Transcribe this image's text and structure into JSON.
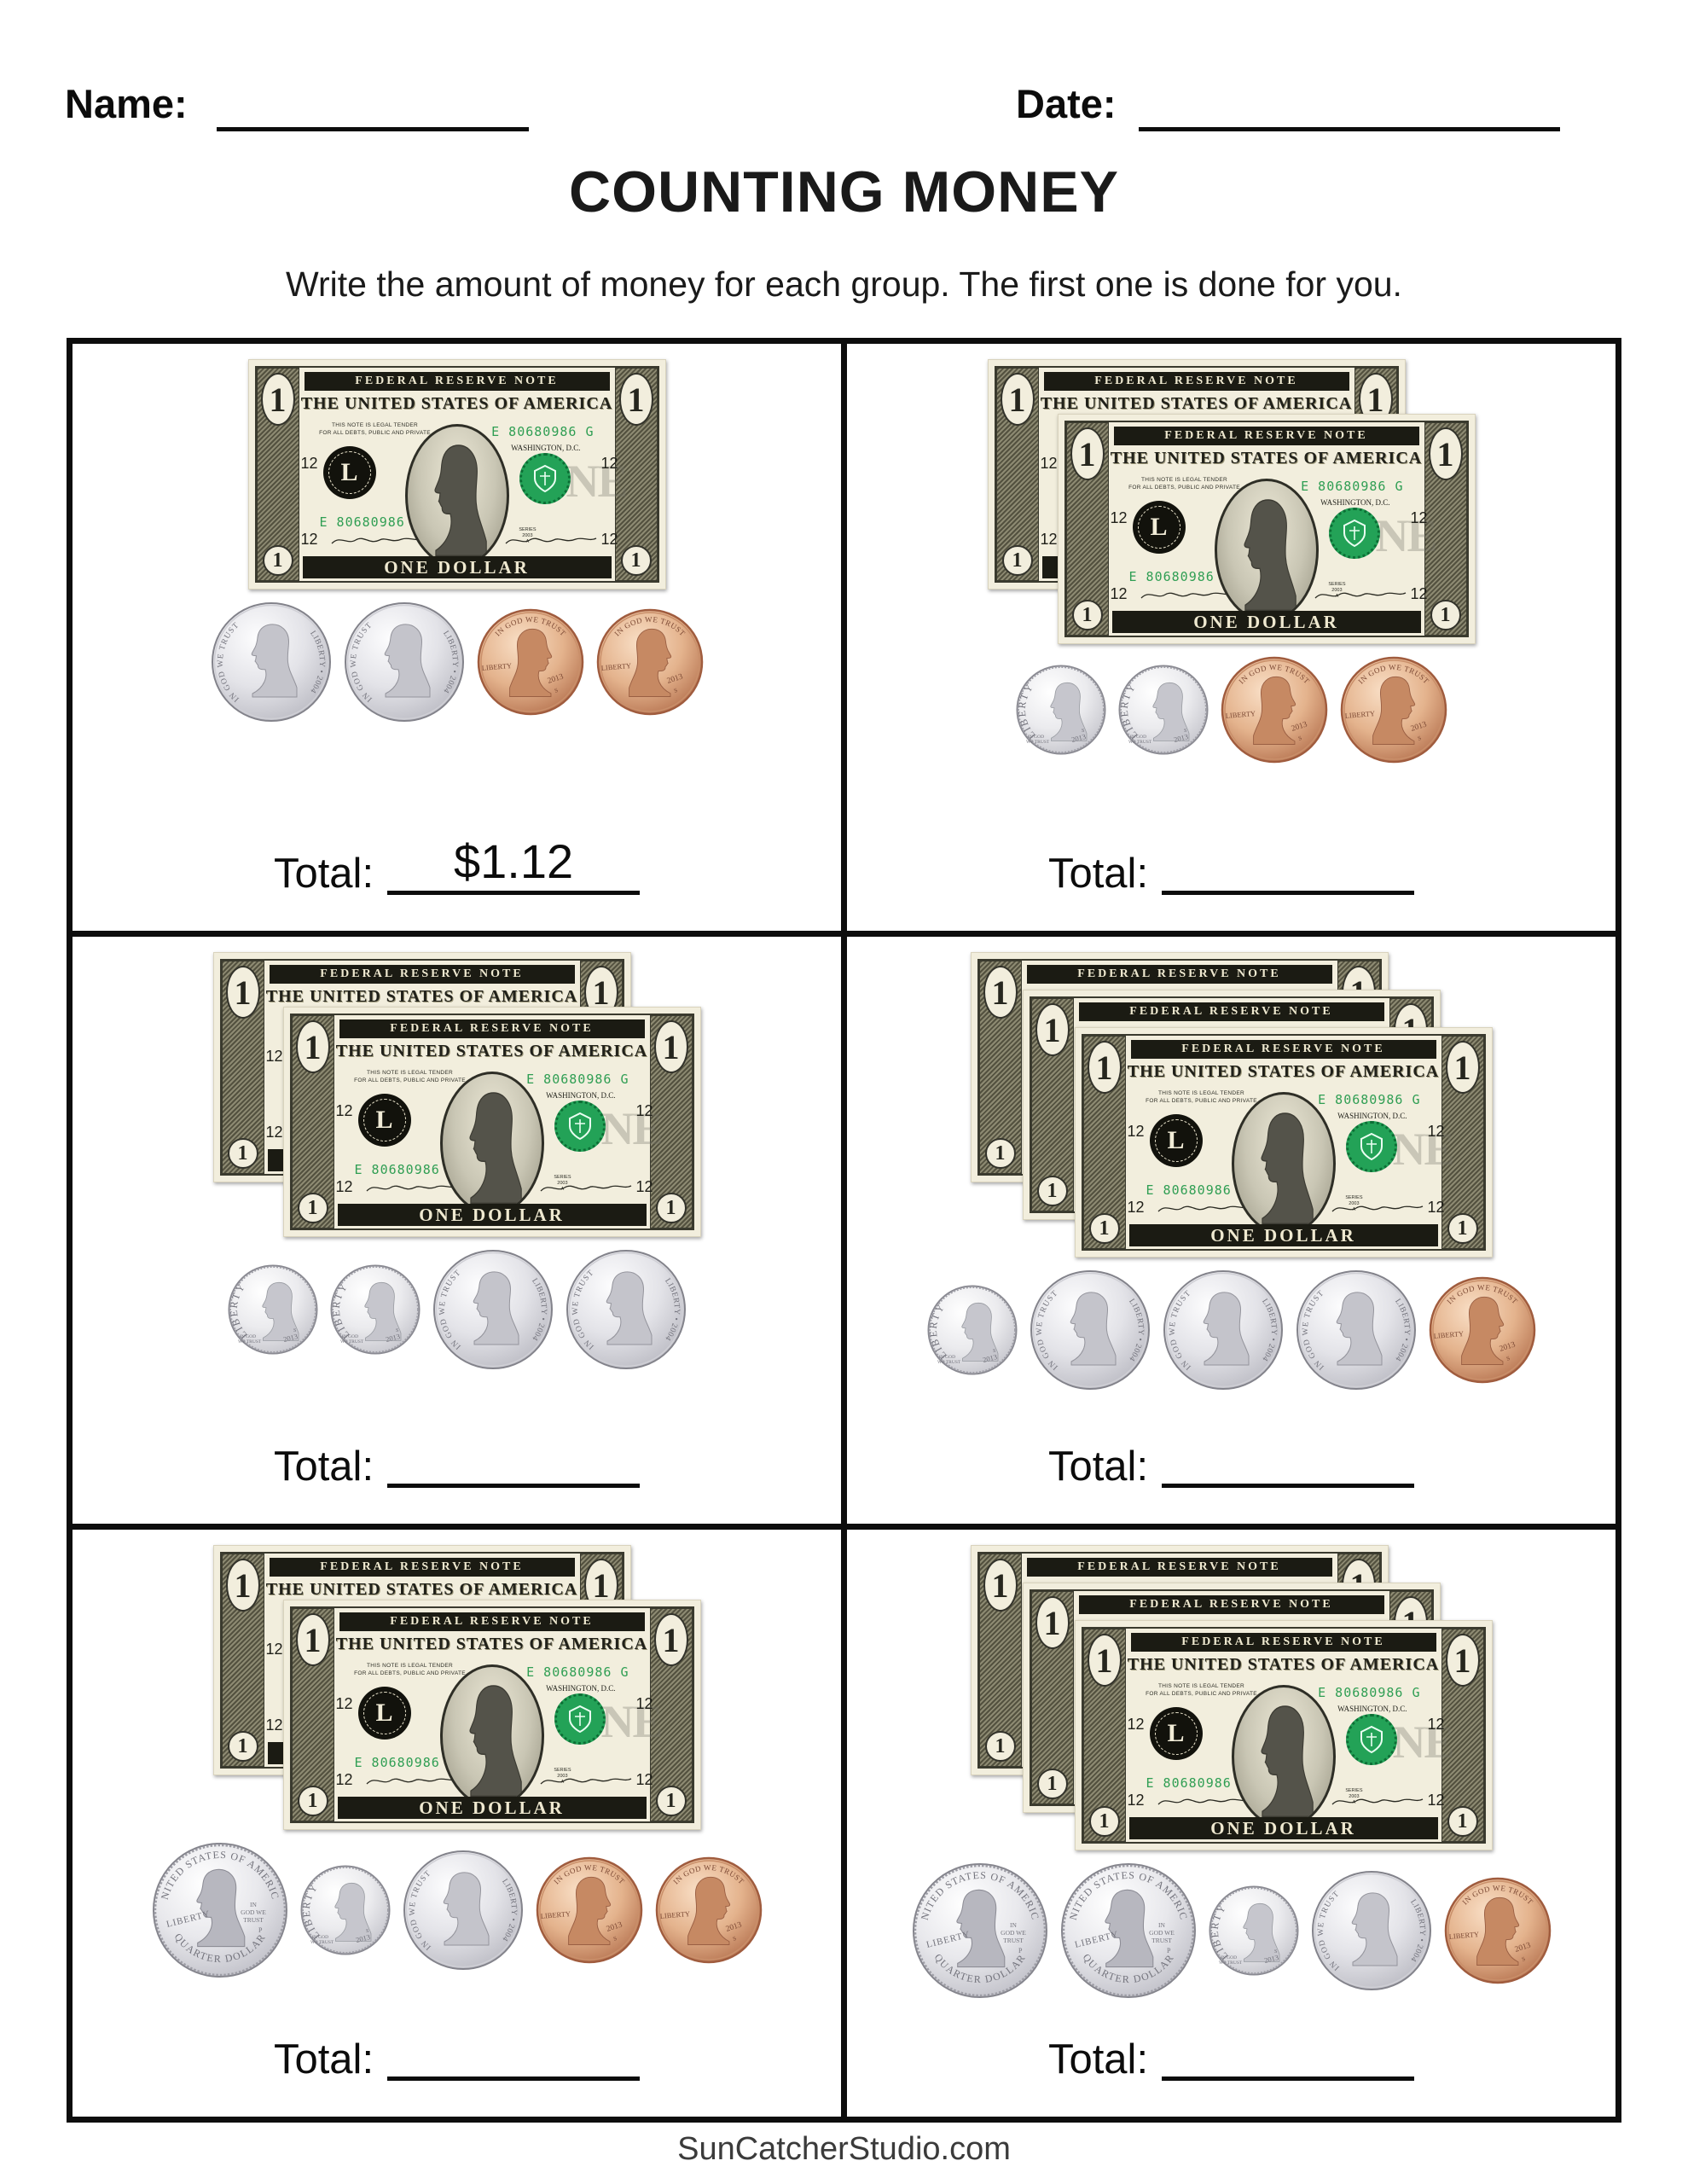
{
  "header": {
    "name_label": "Name:",
    "date_label": "Date:",
    "title": "COUNTING MONEY",
    "instruction": "Write the amount of money for each group. The first one is done for you."
  },
  "bill": {
    "banner": "FEDERAL RESERVE NOTE",
    "country": "THE UNITED STATES OF AMERICA",
    "legal_line1": "THIS NOTE IS LEGAL TENDER",
    "legal_line2": "FOR ALL DEBTS, PUBLIC AND PRIVATE",
    "serial": "E 80680986 G",
    "city": "WASHINGTON, D.C.",
    "ghost": "ONE",
    "denomination": "ONE DOLLAR",
    "value": "1",
    "district_letter": "L",
    "plate_number": "12",
    "series_line1": "SERIES",
    "series_line2": "2003",
    "series_line3": "A"
  },
  "coins": {
    "quarter": {
      "top_text": "UNITED STATES OF AMERICA",
      "bottom_text": "QUARTER DOLLAR",
      "liberty": "LIBERTY",
      "motto_line1": "IN",
      "motto_line2": "GOD WE",
      "motto_line3": "TRUST",
      "mint": "P"
    },
    "dime": {
      "liberty": "LIBERTY",
      "motto_line1": "IN GOD",
      "motto_line2": "WE TRUST",
      "year": "2013",
      "mint": "S"
    },
    "nickel": {
      "motto": "IN GOD WE TRUST",
      "liberty_year": "LIBERTY • 2004"
    },
    "penny": {
      "motto": "IN GOD WE TRUST",
      "liberty": "LIBERTY",
      "year": "2013",
      "mint": "S"
    }
  },
  "cells": [
    {
      "bills": 1,
      "coins": [
        "nickel",
        "nickel",
        "penny",
        "penny"
      ],
      "total_label": "Total:",
      "total_value": "$1.12"
    },
    {
      "bills": 2,
      "coins": [
        "dime",
        "dime",
        "penny",
        "penny"
      ],
      "total_label": "Total:",
      "total_value": ""
    },
    {
      "bills": 2,
      "coins": [
        "dime",
        "dime",
        "nickel",
        "nickel"
      ],
      "total_label": "Total:",
      "total_value": ""
    },
    {
      "bills": 3,
      "coins": [
        "dime",
        "nickel",
        "nickel",
        "nickel",
        "penny"
      ],
      "total_label": "Total:",
      "total_value": ""
    },
    {
      "bills": 2,
      "coins": [
        "quarter",
        "dime",
        "nickel",
        "penny",
        "penny"
      ],
      "total_label": "Total:",
      "total_value": ""
    },
    {
      "bills": 3,
      "coins": [
        "quarter",
        "quarter",
        "dime",
        "nickel",
        "penny"
      ],
      "total_label": "Total:",
      "total_value": ""
    }
  ],
  "footer": {
    "site_name": "SunCatcherStudio.com"
  },
  "colors": {
    "serial_green": "#2f9e53",
    "seal_green": "#23a257",
    "bill_paper": "#f2eedd",
    "bill_ink": "#23231b",
    "silver_text": "#73737c",
    "copper_text": "#7d4a35"
  }
}
